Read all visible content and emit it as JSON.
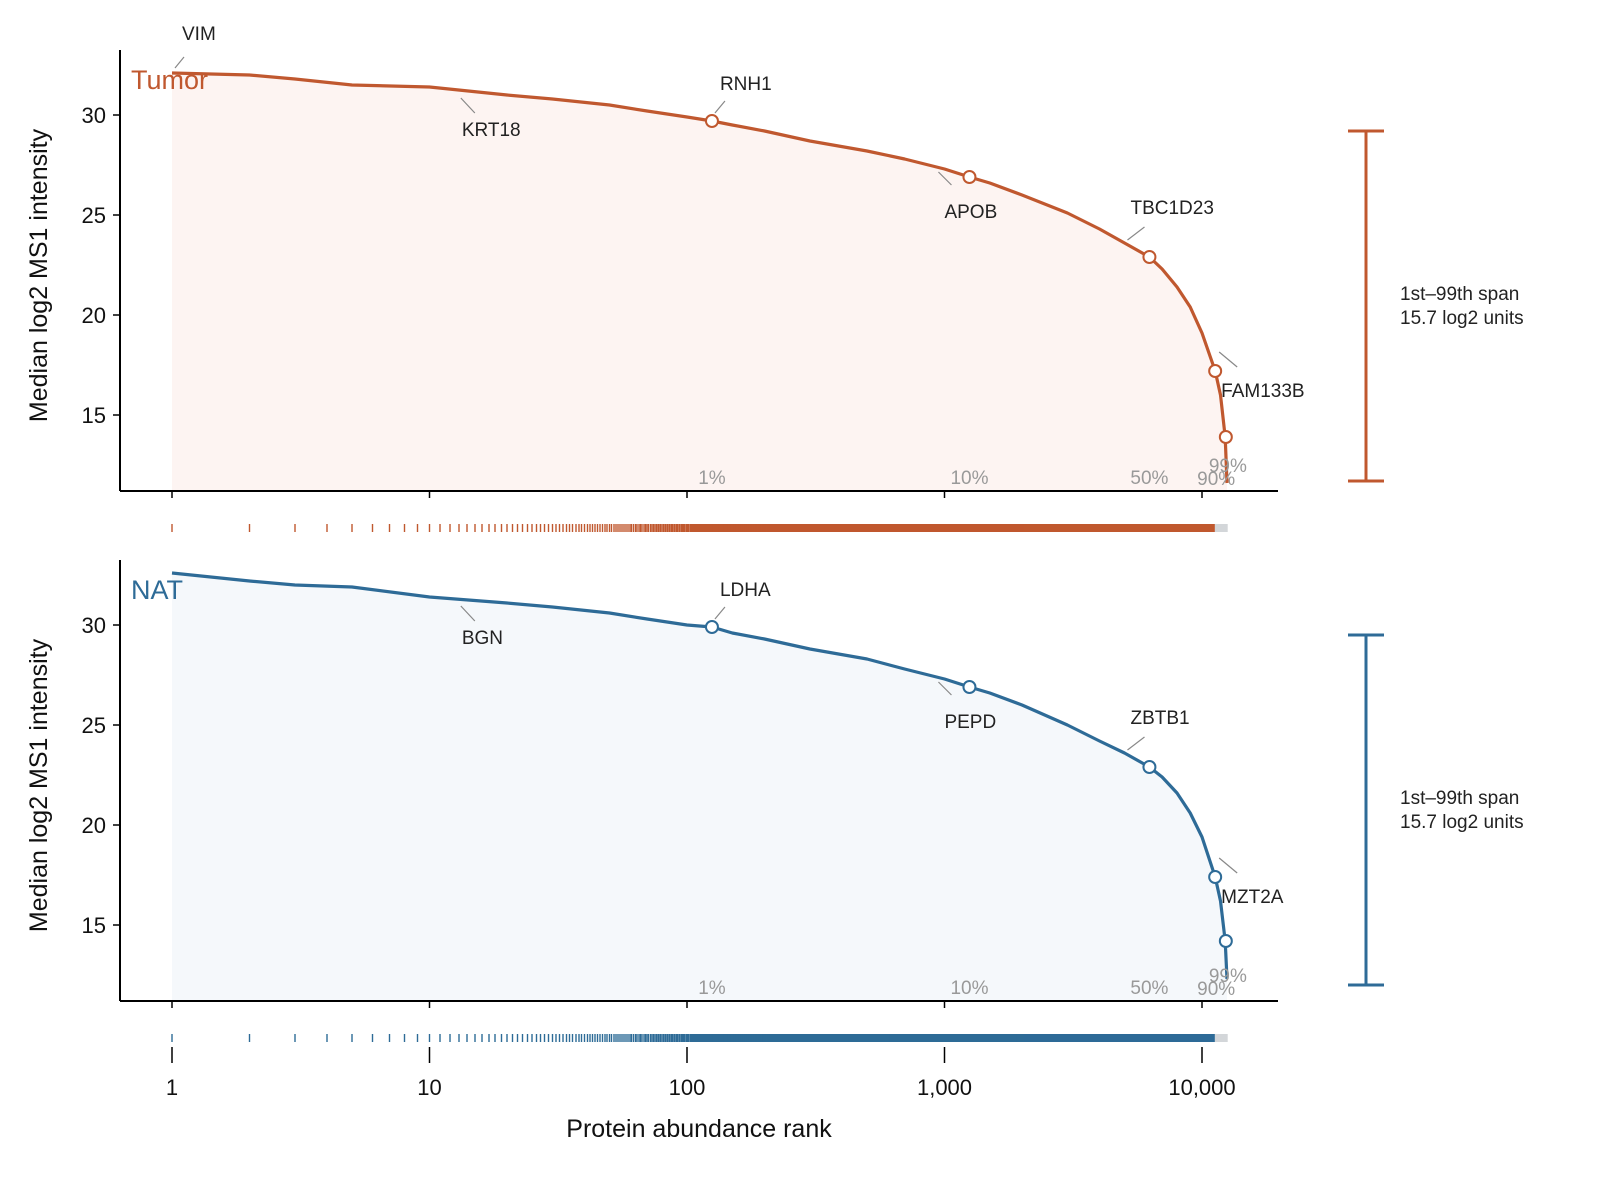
{
  "chart_data": {
    "type": "line",
    "xlabel": "Protein abundance rank",
    "xscale": "log",
    "xlim": [
      0.63,
      19000
    ],
    "x_ticks": [
      1,
      10,
      100,
      1000,
      10000
    ],
    "x_tick_labels": [
      "1",
      "10",
      "100",
      "1,000",
      "10,000"
    ],
    "ylabel": "Median log2 MS1 intensity",
    "ylim": [
      11.3,
      33
    ],
    "y_ticks": [
      15,
      20,
      25,
      30
    ],
    "grid": false,
    "legend": "none",
    "total_proteins": 12500,
    "panels": [
      {
        "name": "Tumor",
        "color": "#c0582f",
        "fill_color": "#fdf4f2",
        "x": [
          1,
          2,
          3,
          5,
          10,
          20,
          30,
          50,
          70,
          100,
          125,
          150,
          200,
          300,
          500,
          700,
          1000,
          1250,
          1500,
          2000,
          3000,
          4000,
          5000,
          6250,
          7000,
          8000,
          9000,
          10000,
          11250,
          11800,
          12300,
          12500
        ],
        "y": [
          32.1,
          32.0,
          31.8,
          31.5,
          31.4,
          31.0,
          30.8,
          30.5,
          30.2,
          29.9,
          29.7,
          29.5,
          29.2,
          28.7,
          28.2,
          27.8,
          27.3,
          26.9,
          26.6,
          26.0,
          25.1,
          24.3,
          23.6,
          22.9,
          22.3,
          21.4,
          20.4,
          19.1,
          17.2,
          16.0,
          13.9,
          11.6
        ],
        "markers": [
          {
            "label": "1%",
            "x": 125,
            "y": 29.7
          },
          {
            "label": "10%",
            "x": 1250,
            "y": 26.9
          },
          {
            "label": "50%",
            "x": 6250,
            "y": 22.9
          },
          {
            "label": "90%",
            "x": 11250,
            "y": 17.2
          },
          {
            "label": "99%",
            "x": 12375,
            "y": 13.9
          }
        ],
        "annotations": [
          {
            "text": "VIM",
            "x": 1,
            "y": 32.1
          },
          {
            "text": "KRT18",
            "x": 13,
            "y": 31.1
          },
          {
            "text": "RNH1",
            "x": 125,
            "y": 29.7
          },
          {
            "text": "APOB",
            "x": 1250,
            "y": 26.9
          },
          {
            "text": "TBC1D23",
            "x": 5000,
            "y": 23.6
          },
          {
            "text": "FAM133B",
            "x": 11250,
            "y": 17.2
          }
        ],
        "span_label": "1st–99th span",
        "span_value": "15.7 log2 units",
        "span_range": [
          11.7,
          29.2
        ]
      },
      {
        "name": "NAT",
        "color": "#2e6b97",
        "fill_color": "#f5f8fb",
        "x": [
          1,
          2,
          3,
          5,
          10,
          20,
          30,
          50,
          70,
          100,
          125,
          150,
          200,
          300,
          500,
          700,
          1000,
          1250,
          1500,
          2000,
          3000,
          4000,
          5000,
          6250,
          7000,
          8000,
          9000,
          10000,
          11250,
          11800,
          12300,
          12500
        ],
        "y": [
          32.6,
          32.2,
          32.0,
          31.9,
          31.4,
          31.1,
          30.9,
          30.6,
          30.3,
          30.0,
          29.9,
          29.6,
          29.3,
          28.8,
          28.3,
          27.8,
          27.3,
          26.9,
          26.6,
          26.0,
          25.0,
          24.2,
          23.6,
          22.9,
          22.4,
          21.6,
          20.6,
          19.4,
          17.4,
          16.2,
          14.2,
          12.3
        ],
        "markers": [
          {
            "label": "1%",
            "x": 125,
            "y": 29.9
          },
          {
            "label": "10%",
            "x": 1250,
            "y": 26.9
          },
          {
            "label": "50%",
            "x": 6250,
            "y": 22.9
          },
          {
            "label": "90%",
            "x": 11250,
            "y": 17.4
          },
          {
            "label": "99%",
            "x": 12375,
            "y": 14.2
          }
        ],
        "annotations": [
          {
            "text": "BGN",
            "x": 13,
            "y": 31.2
          },
          {
            "text": "LDHA",
            "x": 125,
            "y": 29.9
          },
          {
            "text": "PEPD",
            "x": 1250,
            "y": 26.9
          },
          {
            "text": "ZBTB1",
            "x": 5000,
            "y": 23.6
          },
          {
            "text": "MZT2A",
            "x": 11250,
            "y": 17.4
          }
        ],
        "span_label": "1st–99th span",
        "span_value": "15.7 log2 units",
        "span_range": [
          12.0,
          29.5
        ]
      }
    ]
  }
}
